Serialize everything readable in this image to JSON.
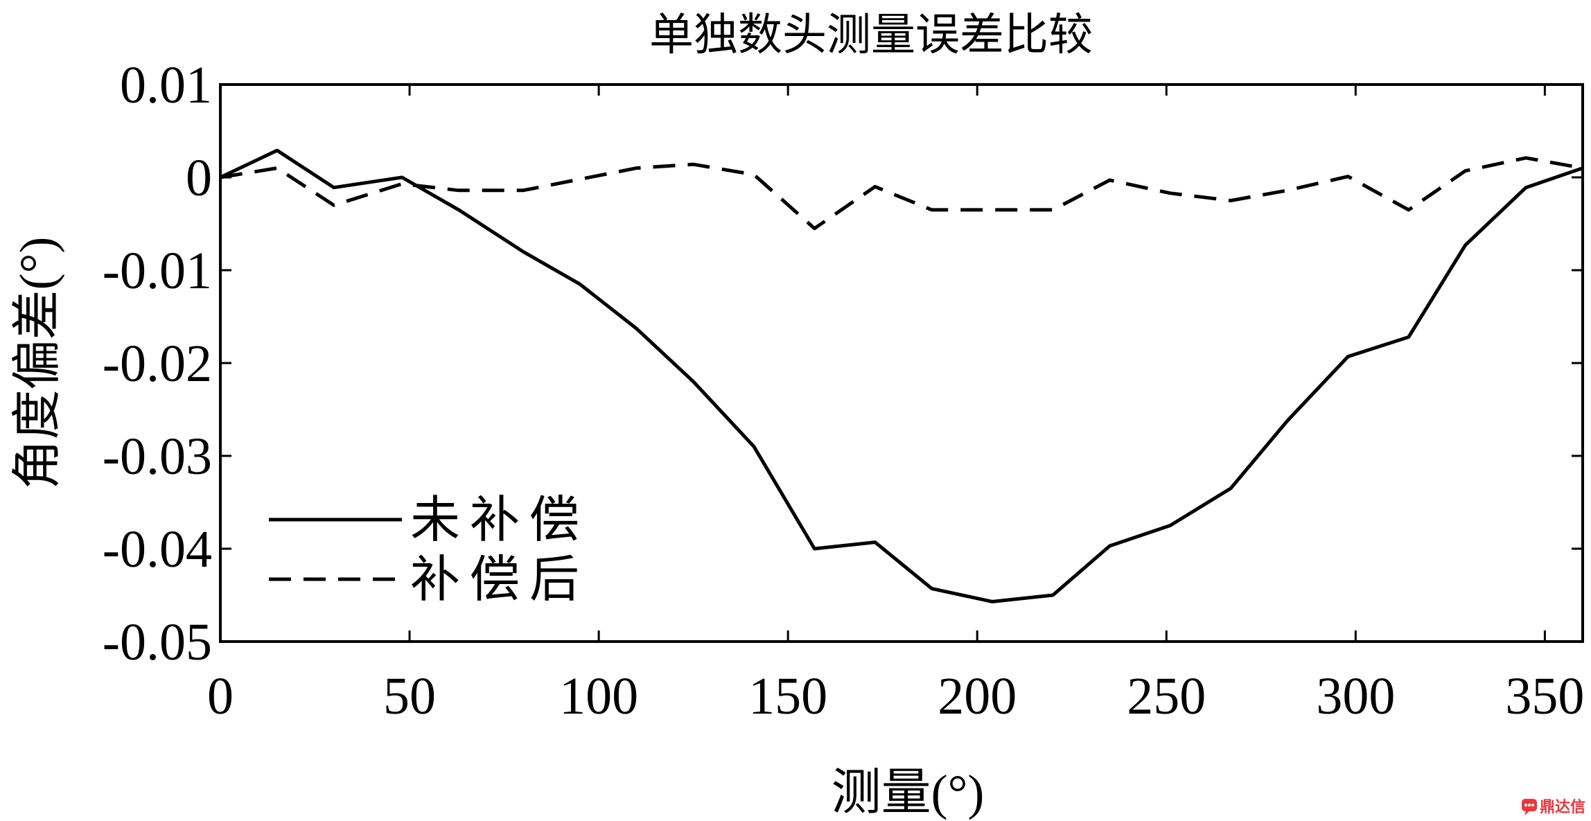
{
  "chart_data": {
    "type": "line",
    "title": "单独数头测量误差比较",
    "xlabel": "测量(°)",
    "ylabel": "角度偏差(°)",
    "xlim": [
      0,
      360
    ],
    "ylim": [
      -0.05,
      0.01
    ],
    "xticks": [
      0,
      50,
      100,
      150,
      200,
      250,
      300,
      350
    ],
    "xtick_labels": [
      "0",
      "50",
      "100",
      "150",
      "200",
      "250",
      "300",
      "350"
    ],
    "yticks": [
      0.01,
      0,
      -0.01,
      -0.02,
      -0.03,
      -0.04,
      -0.05
    ],
    "ytick_labels": [
      "0.01",
      "0",
      "-0.01",
      "-0.02",
      "-0.03",
      "-0.04",
      "-0.05"
    ],
    "grid": false,
    "legend_position": "bottom-left",
    "series": [
      {
        "name": "未补偿",
        "style": "solid",
        "color": "#000000",
        "x": [
          0,
          15,
          30,
          48,
          63,
          80,
          95,
          110,
          125,
          141,
          157,
          173,
          188,
          204,
          220,
          235,
          251,
          267,
          282,
          298,
          314,
          329,
          345,
          360
        ],
        "y": [
          0.0,
          0.0029,
          -0.0011,
          0.0,
          -0.0035,
          -0.008,
          -0.0115,
          -0.0163,
          -0.022,
          -0.029,
          -0.04,
          -0.0393,
          -0.0443,
          -0.0457,
          -0.045,
          -0.0397,
          -0.0375,
          -0.0335,
          -0.0262,
          -0.0193,
          -0.0172,
          -0.0073,
          -0.0011,
          0.001
        ]
      },
      {
        "name": "补偿后",
        "style": "dashed",
        "color": "#000000",
        "x": [
          0,
          15,
          30,
          48,
          63,
          80,
          95,
          110,
          125,
          141,
          157,
          173,
          188,
          204,
          220,
          235,
          251,
          267,
          282,
          298,
          314,
          329,
          345,
          360
        ],
        "y": [
          0.0,
          0.001,
          -0.003,
          -0.0007,
          -0.0014,
          -0.0014,
          -0.0002,
          0.001,
          0.0014,
          0.0003,
          -0.0055,
          -0.001,
          -0.0035,
          -0.0035,
          -0.0035,
          -0.0003,
          -0.0017,
          -0.0025,
          -0.0014,
          0.0001,
          -0.0035,
          0.0007,
          0.0021,
          0.001
        ]
      }
    ]
  },
  "watermark": {
    "text": "鼎达信",
    "icon": "chat-bubble-logo-icon",
    "color": "#e8383d"
  }
}
